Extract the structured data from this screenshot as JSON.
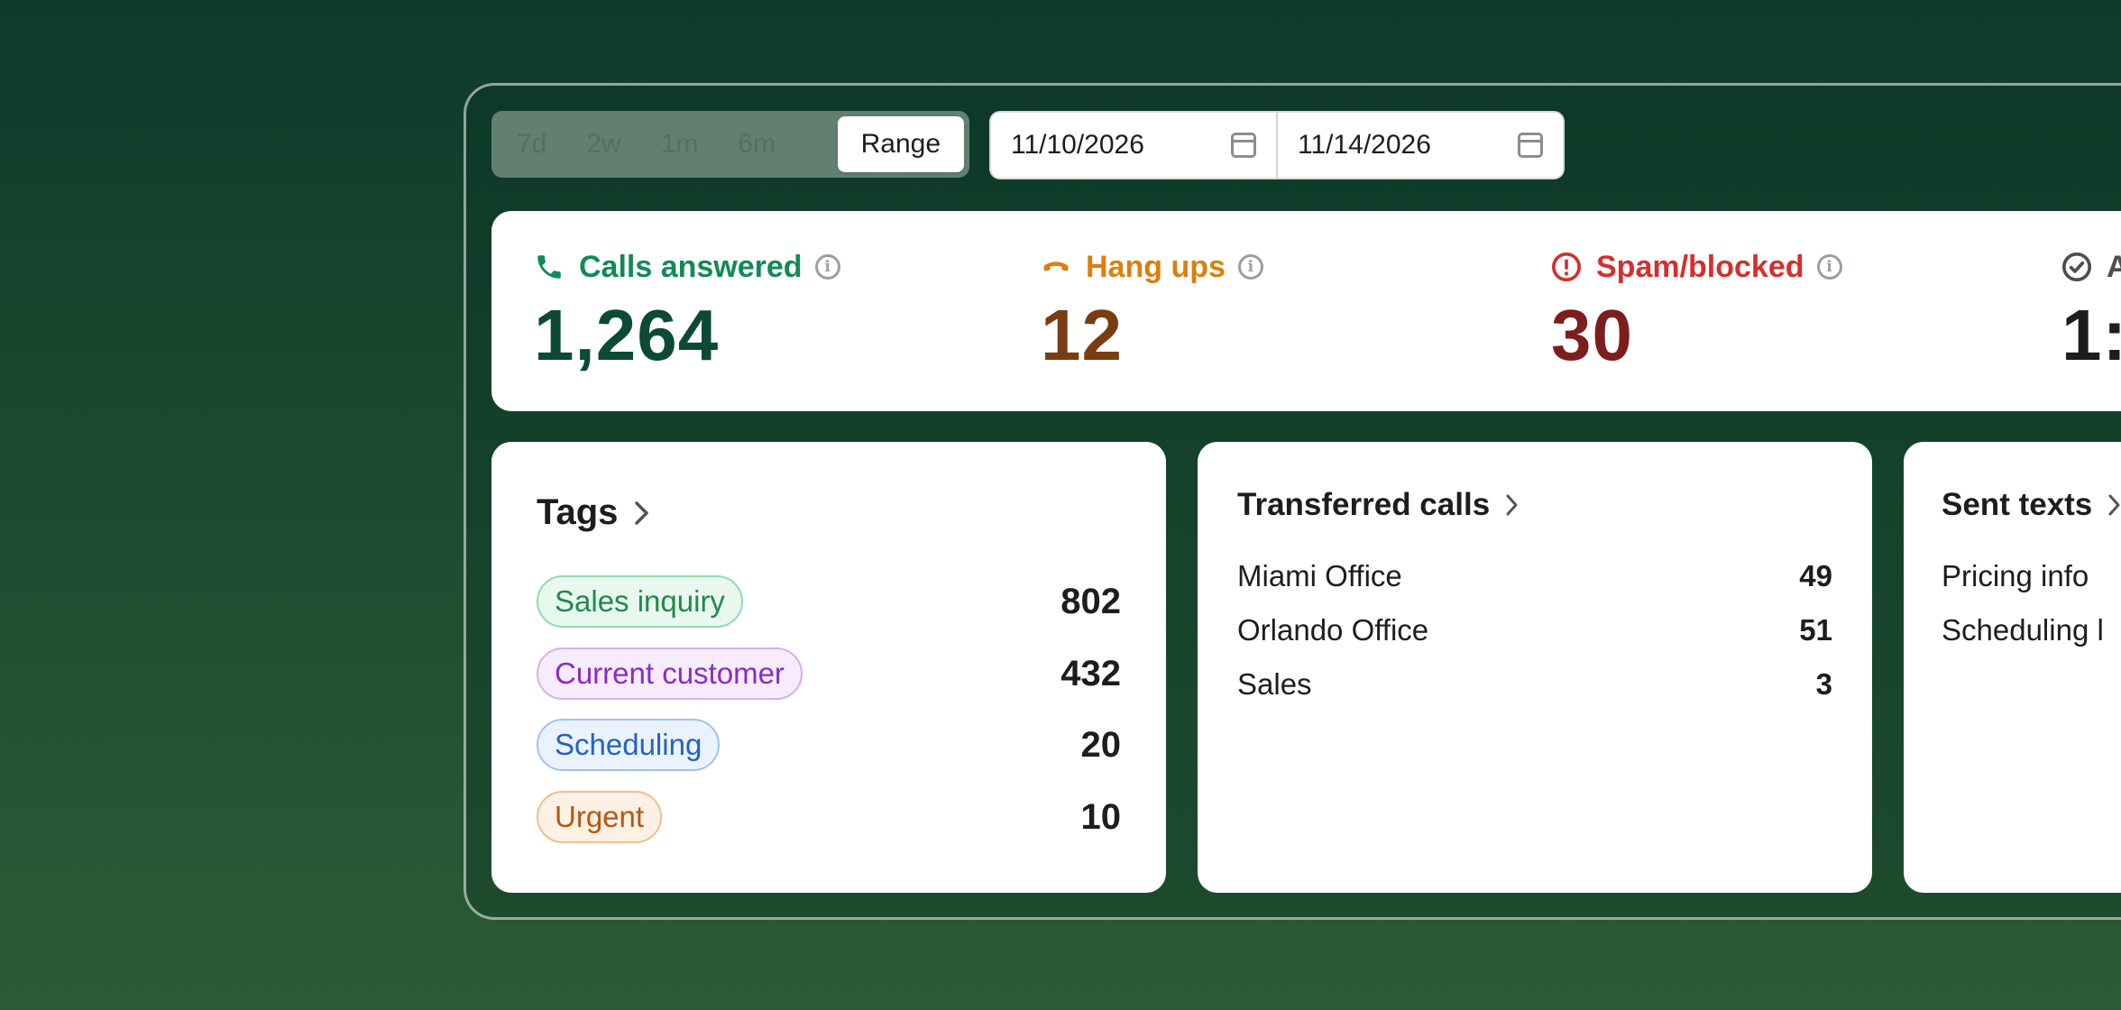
{
  "range_selector": {
    "options": [
      "7d",
      "2w",
      "1m",
      "6m"
    ],
    "active": "Range"
  },
  "dates": {
    "start": "11/10/2026",
    "end": "11/14/2026"
  },
  "stats": [
    {
      "label": "Calls answered",
      "value": "1,264",
      "label_color": "#128a55",
      "value_color": "#0c4a33"
    },
    {
      "label": "Hang ups",
      "value": "12",
      "label_color": "#d9800e",
      "value_color": "#7a3c12"
    },
    {
      "label": "Spam/blocked",
      "value": "30",
      "label_color": "#d42f2f",
      "value_color": "#7e1d1d"
    },
    {
      "label": "A",
      "value": "1:",
      "label_color": "#4b4f4d",
      "value_color": "#1d1d1d"
    }
  ],
  "tags_card": {
    "title": "Tags",
    "items": [
      {
        "label": "Sales inquiry",
        "count": "802",
        "text": "#1f8a4a",
        "bg": "#e9f8ee",
        "border": "#8fdcab"
      },
      {
        "label": "Current customer",
        "count": "432",
        "text": "#8a2bc7",
        "bg": "#f6ecfd",
        "border": "#d6aef0"
      },
      {
        "label": "Scheduling",
        "count": "20",
        "text": "#2462c2",
        "bg": "#eaf3fd",
        "border": "#9cc4ef"
      },
      {
        "label": "Urgent",
        "count": "10",
        "text": "#b8560f",
        "bg": "#fdf1e6",
        "border": "#f1bd8d"
      }
    ]
  },
  "transferred_card": {
    "title": "Transferred calls",
    "items": [
      {
        "label": "Miami Office",
        "count": "49"
      },
      {
        "label": "Orlando Office",
        "count": "51"
      },
      {
        "label": "Sales",
        "count": "3"
      }
    ]
  },
  "texts_card": {
    "title": "Sent texts",
    "items": [
      {
        "label": "Pricing info"
      },
      {
        "label": "Scheduling l"
      }
    ]
  }
}
